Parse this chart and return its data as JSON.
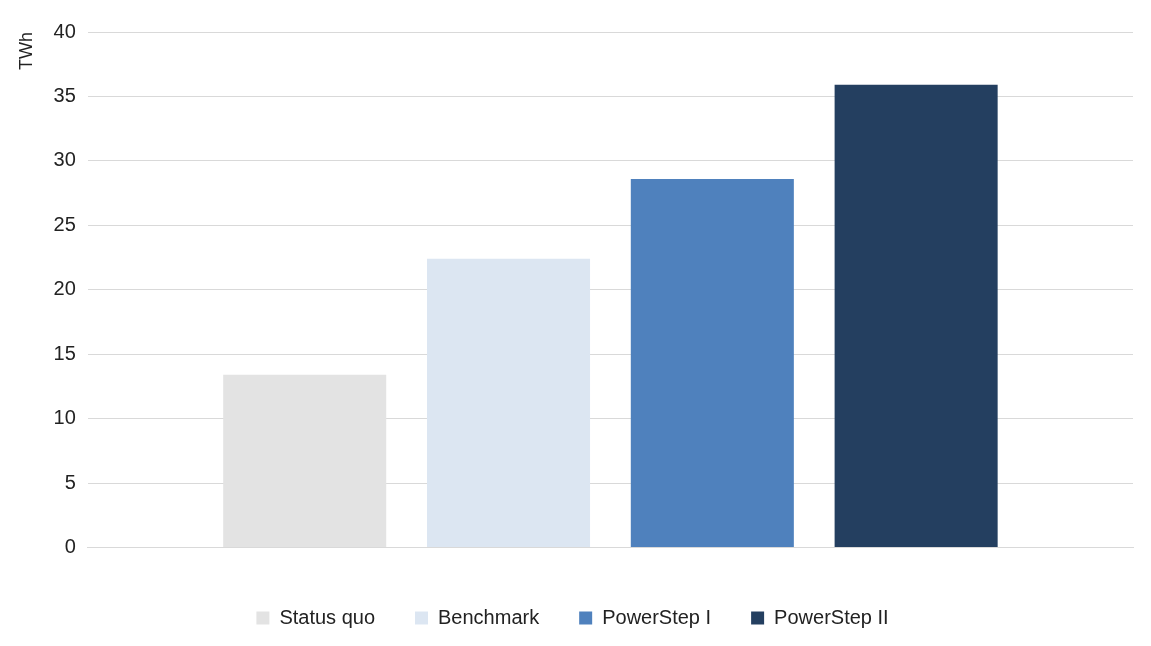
{
  "chart_data": {
    "type": "bar",
    "ylabel": "TWh",
    "categories": [
      null
    ],
    "series": [
      {
        "name": "Status quo",
        "color": "#e3e3e3",
        "values": [
          13.4
        ]
      },
      {
        "name": "Benchmark",
        "color": "#dce6f2",
        "values": [
          22.4
        ]
      },
      {
        "name": "PowerStep I",
        "color": "#4f81bd",
        "values": [
          28.6
        ]
      },
      {
        "name": "PowerStep II",
        "color": "#243f60",
        "values": [
          35.9
        ]
      }
    ],
    "ylim": [
      0,
      40
    ],
    "yticks": [
      0,
      5,
      10,
      15,
      20,
      25,
      30,
      35,
      40
    ],
    "grid": "y",
    "legend": "bottom"
  }
}
